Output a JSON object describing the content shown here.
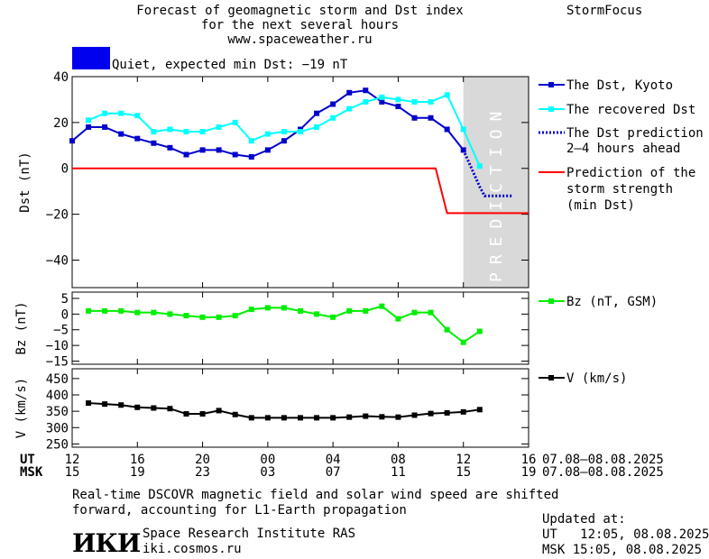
{
  "header": {
    "title_line1": "Forecast of geomagnetic storm and Dst index",
    "title_line2": "for the next several hours",
    "url": "www.spaceweather.ru",
    "brand": "StormFocus"
  },
  "status": {
    "label": "Quiet, expected min Dst: −19 nT",
    "color": "#0000ee"
  },
  "prediction_label": "PREDICTION",
  "legend": {
    "dst_kyoto": "The Dst, Kyoto",
    "recovered": "The recovered Dst",
    "prediction_line1": "The Dst prediction",
    "prediction_line2": "2–4 hours ahead",
    "strength_line1": "Prediction of the",
    "strength_line2": "storm strength",
    "strength_line3": "(min Dst)",
    "bz": "Bz (nT, GSM)",
    "v": "V (km/s)"
  },
  "time_axis": {
    "ut_label": "UT",
    "msk_label": "MSK",
    "ut_ticks": [
      "12",
      "16",
      "20",
      "00",
      "04",
      "08",
      "12",
      "16"
    ],
    "msk_ticks": [
      "15",
      "19",
      "23",
      "03",
      "07",
      "11",
      "15",
      "19"
    ],
    "ut_range": "07.08–08.08.2025",
    "msk_range": "07.08–08.08.2025"
  },
  "footer": {
    "note_line1": "Real-time DSCOVR magnetic field and solar wind speed are shifted",
    "note_line2": "forward, accounting for L1-Earth propagation",
    "logo_text": "ИКИ",
    "institute": "Space Research Institute RAS",
    "site": "iki.cosmos.ru",
    "updated_label": "Updated at:",
    "updated_ut": "UT   12:05, 08.08.2025",
    "updated_msk": "MSK 15:05, 08.08.2025"
  },
  "colors": {
    "dst": "#0000cc",
    "recovered": "#00ffff",
    "prediction": "#0000cc",
    "strength": "#ff0000",
    "bz": "#00ee00",
    "v": "#000000",
    "prediction_band": "#d9d9d9"
  },
  "chart_data": [
    {
      "type": "line",
      "panel": "dst",
      "ylabel": "Dst (nT)",
      "xlim": [
        0,
        28
      ],
      "ylim": [
        -52,
        40
      ],
      "yticks": [
        40,
        20,
        0,
        -20,
        -40
      ],
      "prediction_band": [
        24,
        28
      ],
      "series": [
        {
          "name": "The Dst, Kyoto",
          "style": "line-squares",
          "x": [
            0,
            1,
            2,
            3,
            4,
            5,
            6,
            7,
            8,
            9,
            10,
            11,
            12,
            13,
            14,
            15,
            16,
            17,
            18,
            19,
            20,
            21,
            22,
            23,
            24
          ],
          "y": [
            12,
            18,
            18,
            15,
            13,
            11,
            9,
            6,
            8,
            8,
            6,
            5,
            8,
            12,
            17,
            24,
            28,
            33,
            34,
            29,
            27,
            22,
            22,
            17,
            8
          ]
        },
        {
          "name": "The recovered Dst",
          "style": "line-squares",
          "x": [
            1,
            2,
            3,
            4,
            5,
            6,
            7,
            8,
            9,
            10,
            11,
            12,
            13,
            14,
            15,
            16,
            17,
            18,
            19,
            20,
            21,
            22,
            23,
            24,
            25
          ],
          "y": [
            21,
            24,
            24,
            23,
            16,
            17,
            16,
            16,
            18,
            20,
            12,
            15,
            16,
            16,
            18,
            22,
            26,
            29,
            31,
            30,
            29,
            29,
            32,
            17,
            1
          ]
        },
        {
          "name": "The Dst prediction 2–4 hours ahead",
          "style": "dotted",
          "x": [
            24,
            25,
            25.3,
            26.2,
            27
          ],
          "y": [
            8,
            -8,
            -12,
            -12,
            -12
          ]
        },
        {
          "name": "Prediction of the storm strength (min Dst)",
          "style": "line",
          "x": [
            0,
            22.3,
            23,
            28
          ],
          "y": [
            0,
            0,
            -19.5,
            -19.5
          ]
        }
      ]
    },
    {
      "type": "line",
      "panel": "bz",
      "ylabel": "Bz (nT)",
      "xlim": [
        0,
        28
      ],
      "ylim": [
        -16,
        7
      ],
      "yticks": [
        5,
        0,
        -5,
        -10,
        -15
      ],
      "series": [
        {
          "name": "Bz (nT, GSM)",
          "style": "line-squares",
          "x": [
            1,
            2,
            3,
            4,
            5,
            6,
            7,
            8,
            9,
            10,
            11,
            12,
            13,
            14,
            15,
            16,
            17,
            18,
            19,
            20,
            21,
            22,
            23,
            24,
            25
          ],
          "y": [
            1,
            1,
            1,
            0.5,
            0.5,
            0,
            -0.5,
            -1,
            -1,
            -0.5,
            1.5,
            2,
            2,
            1,
            0,
            -1,
            1,
            1,
            2.5,
            -1.5,
            0.5,
            0.5,
            -5,
            -9,
            -5.5
          ]
        }
      ]
    },
    {
      "type": "line",
      "panel": "v",
      "ylabel": "V (km/s)",
      "xlim": [
        0,
        28
      ],
      "ylim": [
        240,
        480
      ],
      "yticks": [
        450,
        400,
        350,
        300,
        250
      ],
      "series": [
        {
          "name": "V (km/s)",
          "style": "line-squares",
          "x": [
            1,
            2,
            3,
            4,
            5,
            6,
            7,
            8,
            9,
            10,
            11,
            12,
            13,
            14,
            15,
            16,
            17,
            18,
            19,
            20,
            21,
            22,
            23,
            24,
            25
          ],
          "y": [
            375,
            372,
            369,
            362,
            360,
            358,
            342,
            342,
            352,
            340,
            330,
            330,
            330,
            330,
            330,
            330,
            332,
            335,
            333,
            332,
            338,
            343,
            345,
            348,
            355
          ]
        }
      ]
    }
  ]
}
